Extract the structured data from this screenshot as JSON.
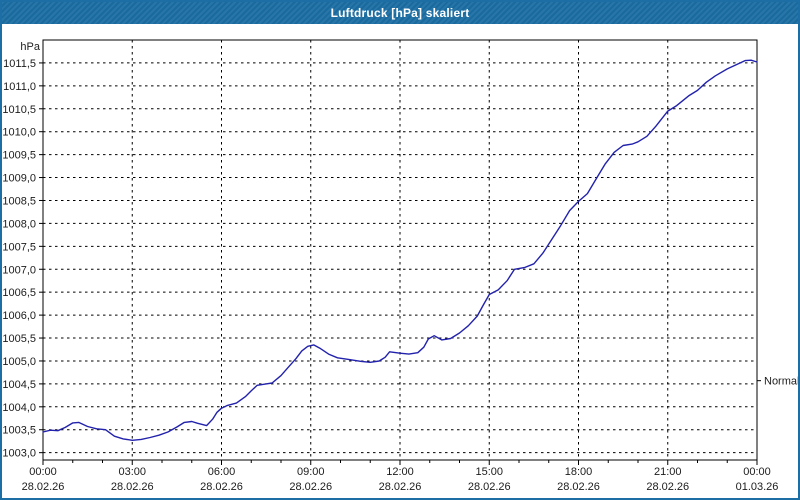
{
  "window": {
    "title": "Luftdruck [hPa] skaliert",
    "titlebar_color": "#1C6EA4",
    "border_color": "#1C6EA4",
    "background": "#FFFFFF"
  },
  "chart_data": {
    "type": "line",
    "title": "Luftdruck [hPa] skaliert",
    "unit_label": "hPa",
    "grid": "dashed",
    "grid_color": "#000000",
    "frame_color": "#000000",
    "xlim_hours": [
      0,
      24
    ],
    "ylim": [
      1002.84,
      1012.0
    ],
    "x_minor_tick_hours": 1,
    "x_ticks": [
      {
        "hour": 0,
        "time": "00:00",
        "date": "28.02.26"
      },
      {
        "hour": 3,
        "time": "03:00",
        "date": "28.02.26"
      },
      {
        "hour": 6,
        "time": "06:00",
        "date": "28.02.26"
      },
      {
        "hour": 9,
        "time": "09:00",
        "date": "28.02.26"
      },
      {
        "hour": 12,
        "time": "12:00",
        "date": "28.02.26"
      },
      {
        "hour": 15,
        "time": "15:00",
        "date": "28.02.26"
      },
      {
        "hour": 18,
        "time": "18:00",
        "date": "28.02.26"
      },
      {
        "hour": 21,
        "time": "21:00",
        "date": "28.02.26"
      },
      {
        "hour": 24,
        "time": "00:00",
        "date": "01.03.26"
      }
    ],
    "y_ticks": [
      {
        "value": 1011.5,
        "label": "1011,5"
      },
      {
        "value": 1011.0,
        "label": "1011,0"
      },
      {
        "value": 1010.5,
        "label": "1010,5"
      },
      {
        "value": 1010.0,
        "label": "1010,0"
      },
      {
        "value": 1009.5,
        "label": "1009,5"
      },
      {
        "value": 1009.0,
        "label": "1009,0"
      },
      {
        "value": 1008.5,
        "label": "1008,5"
      },
      {
        "value": 1008.0,
        "label": "1008,0"
      },
      {
        "value": 1007.5,
        "label": "1007,5"
      },
      {
        "value": 1007.0,
        "label": "1007,0"
      },
      {
        "value": 1006.5,
        "label": "1006,5"
      },
      {
        "value": 1006.0,
        "label": "1006,0"
      },
      {
        "value": 1005.5,
        "label": "1005,5"
      },
      {
        "value": 1005.0,
        "label": "1005,0"
      },
      {
        "value": 1004.5,
        "label": "1004,5"
      },
      {
        "value": 1004.0,
        "label": "1004,0"
      },
      {
        "value": 1003.5,
        "label": "1003,5"
      },
      {
        "value": 1003.0,
        "label": "1003,0"
      }
    ],
    "right_marker": {
      "label": "Normal",
      "value": 1004.57
    },
    "series": [
      {
        "name": "Luftdruck",
        "color": "#2222AC",
        "points": [
          [
            0.0,
            1003.45
          ],
          [
            0.25,
            1003.49
          ],
          [
            0.5,
            1003.48
          ],
          [
            0.75,
            1003.55
          ],
          [
            1.0,
            1003.65
          ],
          [
            1.2,
            1003.66
          ],
          [
            1.5,
            1003.57
          ],
          [
            1.8,
            1003.52
          ],
          [
            2.1,
            1003.5
          ],
          [
            2.4,
            1003.36
          ],
          [
            2.7,
            1003.3
          ],
          [
            3.0,
            1003.27
          ],
          [
            3.3,
            1003.29
          ],
          [
            3.6,
            1003.33
          ],
          [
            3.9,
            1003.38
          ],
          [
            4.2,
            1003.45
          ],
          [
            4.5,
            1003.56
          ],
          [
            4.75,
            1003.66
          ],
          [
            5.0,
            1003.68
          ],
          [
            5.2,
            1003.64
          ],
          [
            5.5,
            1003.59
          ],
          [
            5.7,
            1003.73
          ],
          [
            5.85,
            1003.88
          ],
          [
            6.0,
            1003.97
          ],
          [
            6.2,
            1004.03
          ],
          [
            6.5,
            1004.08
          ],
          [
            6.8,
            1004.22
          ],
          [
            7.0,
            1004.35
          ],
          [
            7.2,
            1004.47
          ],
          [
            7.5,
            1004.5
          ],
          [
            7.7,
            1004.52
          ],
          [
            8.0,
            1004.68
          ],
          [
            8.2,
            1004.83
          ],
          [
            8.5,
            1005.05
          ],
          [
            8.7,
            1005.22
          ],
          [
            8.9,
            1005.32
          ],
          [
            9.1,
            1005.35
          ],
          [
            9.3,
            1005.28
          ],
          [
            9.6,
            1005.15
          ],
          [
            9.9,
            1005.07
          ],
          [
            10.3,
            1005.03
          ],
          [
            10.7,
            1004.99
          ],
          [
            11.0,
            1004.97
          ],
          [
            11.3,
            1005.0
          ],
          [
            11.5,
            1005.08
          ],
          [
            11.65,
            1005.2
          ],
          [
            12.0,
            1005.17
          ],
          [
            12.3,
            1005.15
          ],
          [
            12.6,
            1005.18
          ],
          [
            12.8,
            1005.3
          ],
          [
            12.95,
            1005.48
          ],
          [
            13.15,
            1005.55
          ],
          [
            13.4,
            1005.46
          ],
          [
            13.7,
            1005.49
          ],
          [
            14.0,
            1005.61
          ],
          [
            14.3,
            1005.77
          ],
          [
            14.6,
            1005.98
          ],
          [
            14.8,
            1006.22
          ],
          [
            15.0,
            1006.45
          ],
          [
            15.3,
            1006.55
          ],
          [
            15.6,
            1006.75
          ],
          [
            15.85,
            1007.0
          ],
          [
            16.2,
            1007.04
          ],
          [
            16.5,
            1007.12
          ],
          [
            16.8,
            1007.35
          ],
          [
            17.1,
            1007.65
          ],
          [
            17.4,
            1007.95
          ],
          [
            17.7,
            1008.28
          ],
          [
            18.0,
            1008.48
          ],
          [
            18.3,
            1008.65
          ],
          [
            18.6,
            1008.98
          ],
          [
            18.9,
            1009.3
          ],
          [
            19.2,
            1009.55
          ],
          [
            19.5,
            1009.7
          ],
          [
            19.8,
            1009.73
          ],
          [
            20.0,
            1009.78
          ],
          [
            20.3,
            1009.9
          ],
          [
            20.6,
            1010.12
          ],
          [
            21.0,
            1010.45
          ],
          [
            21.3,
            1010.57
          ],
          [
            21.7,
            1010.78
          ],
          [
            22.0,
            1010.9
          ],
          [
            22.3,
            1011.08
          ],
          [
            22.6,
            1011.22
          ],
          [
            23.0,
            1011.37
          ],
          [
            23.3,
            1011.46
          ],
          [
            23.6,
            1011.55
          ],
          [
            23.8,
            1011.56
          ],
          [
            24.0,
            1011.52
          ]
        ]
      }
    ]
  }
}
